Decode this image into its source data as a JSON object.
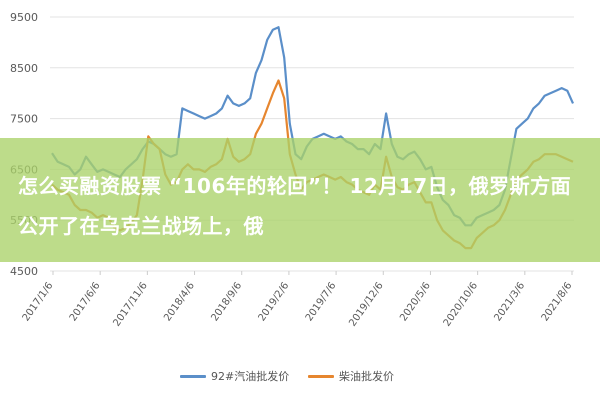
{
  "chart_data": {
    "type": "line",
    "ylim": [
      4500,
      9500
    ],
    "y_ticks": [
      "9500",
      "8500",
      "7500",
      "6500",
      "5500",
      "4500"
    ],
    "x_ticks": [
      "2017/1/6",
      "2017/6/6",
      "2017/11/6",
      "2018/4/6",
      "2018/9/6",
      "2019/2/6",
      "2019/7/6",
      "2019/12/6",
      "2020/5/6",
      "2020/10/6",
      "2021/3/6",
      "2021/8/6"
    ],
    "grid": true,
    "legend_position": "bottom",
    "series": [
      {
        "name": "92#汽油批发价",
        "color": "#5b8fc9",
        "values": [
          6820,
          6650,
          6600,
          6550,
          6400,
          6500,
          6750,
          6600,
          6450,
          6500,
          6450,
          6400,
          6350,
          6500,
          6600,
          6700,
          6900,
          7050,
          7000,
          6900,
          6800,
          6750,
          6800,
          7700,
          7650,
          7600,
          7550,
          7500,
          7550,
          7600,
          7700,
          7950,
          7800,
          7750,
          7800,
          7900,
          8400,
          8650,
          9050,
          9250,
          9300,
          8700,
          7400,
          6800,
          6700,
          6950,
          7100,
          7150,
          7200,
          7150,
          7100,
          7150,
          7050,
          7000,
          6900,
          6900,
          6800,
          7000,
          6900,
          7600,
          7000,
          6750,
          6700,
          6800,
          6850,
          6700,
          6500,
          6550,
          6150,
          5900,
          5800,
          5600,
          5550,
          5400,
          5400,
          5550,
          5600,
          5650,
          5700,
          5800,
          6100,
          6700,
          7300,
          7400,
          7500,
          7700,
          7800,
          7950,
          8000,
          8050,
          8100,
          8050,
          7800
        ]
      },
      {
        "name": "柴油批发价",
        "color": "#e6862f",
        "values": [
          6200,
          6100,
          6050,
          6000,
          5800,
          5700,
          5700,
          5650,
          5550,
          5600,
          5550,
          5350,
          5300,
          5350,
          5450,
          5600,
          6300,
          7150,
          7000,
          6900,
          6400,
          6200,
          6250,
          6500,
          6600,
          6500,
          6500,
          6450,
          6550,
          6600,
          6700,
          7100,
          6750,
          6650,
          6700,
          6800,
          7200,
          7400,
          7700,
          8000,
          8250,
          7900,
          6800,
          6400,
          6100,
          6250,
          6300,
          6350,
          6400,
          6350,
          6300,
          6350,
          6250,
          6200,
          6100,
          6050,
          6000,
          6200,
          6100,
          6750,
          6350,
          6150,
          6100,
          6200,
          6250,
          6050,
          5850,
          5850,
          5500,
          5300,
          5200,
          5100,
          5050,
          4950,
          4950,
          5150,
          5250,
          5350,
          5400,
          5500,
          5700,
          6000,
          6300,
          6400,
          6500,
          6650,
          6700,
          6800,
          6800,
          6800,
          6750,
          6700,
          6650
        ]
      }
    ]
  },
  "banner": {
    "text": "怎么买融资股票 “106年的轮回”！ 12月17日，俄罗斯方面公开了在乌克兰战场上，俄"
  }
}
